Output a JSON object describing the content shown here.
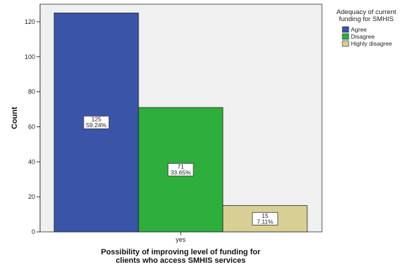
{
  "chart_data": {
    "type": "bar",
    "categories": [
      "yes"
    ],
    "series": [
      {
        "name": "Agree",
        "values": [
          125
        ],
        "percent_label": "59.24%",
        "color": "#3a54a8"
      },
      {
        "name": "Disagree",
        "values": [
          71
        ],
        "percent_label": "33.65%",
        "color": "#2eae3d"
      },
      {
        "name": "Highly disagree",
        "values": [
          15
        ],
        "percent_label": "7.11%",
        "color": "#d8cf95"
      }
    ],
    "xlabel_lines": [
      "Possibility of improving level of funding for",
      "clients who access SMHIS services"
    ],
    "ylabel": "Count",
    "ylim": [
      0,
      130
    ],
    "yticks": [
      0,
      20,
      40,
      60,
      80,
      100,
      120
    ],
    "legend": {
      "title_lines": [
        "Adequacy of current",
        "funding for SMHIS"
      ],
      "placement": "right"
    },
    "plot_background": "#f0f0f0",
    "grid": false
  }
}
